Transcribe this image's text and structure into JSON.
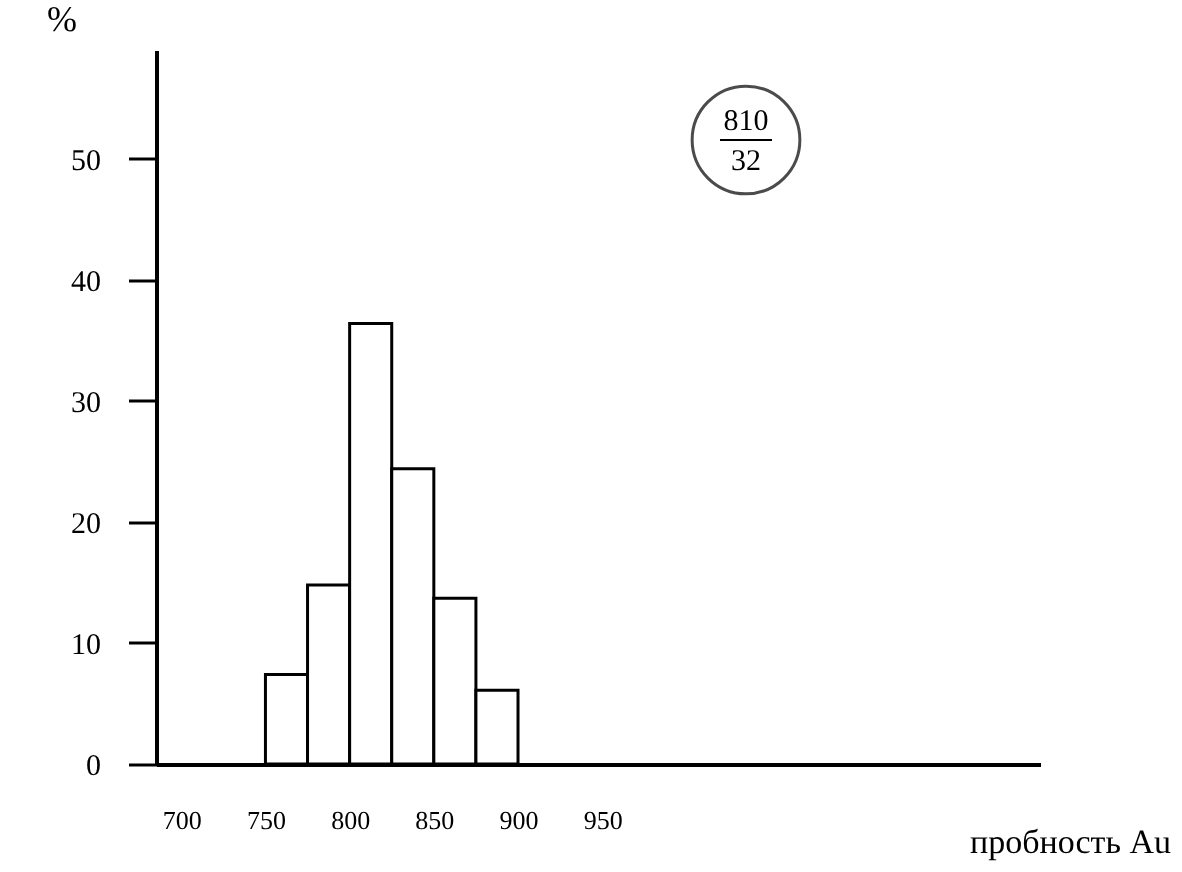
{
  "chart_data": {
    "type": "histogram",
    "xlabel": "пробность Au",
    "ylabel": "%",
    "bins": [
      750,
      775,
      800,
      825,
      850,
      875,
      900
    ],
    "values": [
      7.4,
      14.8,
      36.4,
      24.4,
      13.7,
      6.1
    ],
    "color": "#ffffff",
    "xlim": [
      685,
      1210
    ],
    "xticks": [
      700,
      750,
      800,
      850,
      900,
      950
    ],
    "ylim": [
      0,
      59
    ],
    "yticks": [
      0,
      10,
      20,
      30,
      40,
      50
    ],
    "grid": false,
    "annotations": [
      "810",
      "32"
    ]
  }
}
